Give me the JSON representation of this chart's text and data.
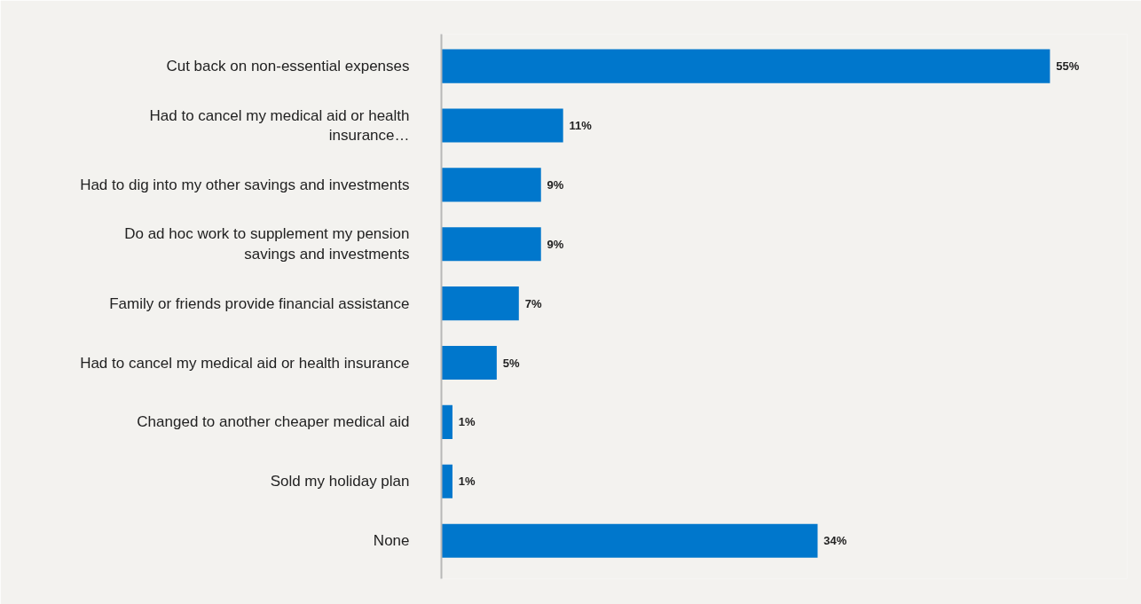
{
  "chart_data": {
    "type": "bar",
    "orientation": "horizontal",
    "categories": [
      "Cut back on non-essential expenses",
      "Had to cancel my medical aid or health insurance…",
      "Had to dig into my other savings and investments",
      "Do ad hoc work to supplement my pension savings and investments",
      "Family or friends provide financial assistance",
      "Had to cancel my medical aid or health insurance",
      "Changed to another cheaper medical aid",
      "Sold my holiday plan",
      "None"
    ],
    "values": [
      55,
      11,
      9,
      9,
      7,
      5,
      1,
      1,
      34
    ],
    "value_labels": [
      "55%",
      "11%",
      "9%",
      "9%",
      "7%",
      "5%",
      "1%",
      "1%",
      "34%"
    ],
    "color": "#0077cc",
    "grid": false
  }
}
